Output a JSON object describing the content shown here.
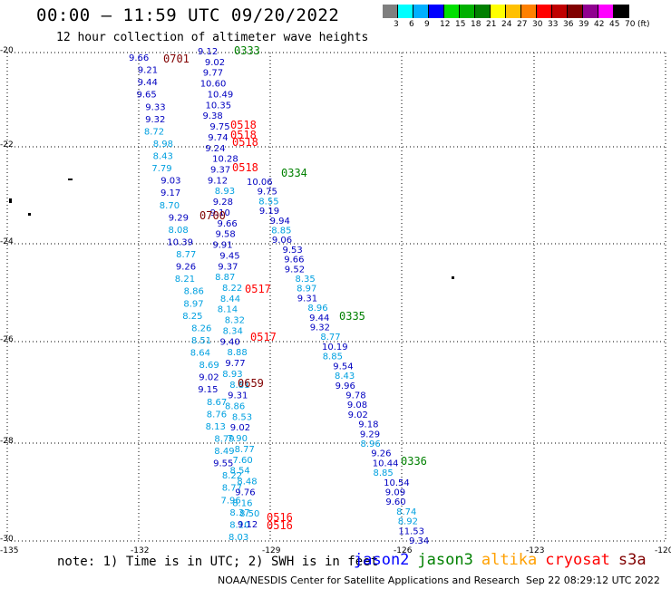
{
  "header": {
    "title": "00:00 – 11:59 UTC 09/20/2022",
    "subtitle": "12 hour collection of altimeter wave heights"
  },
  "colorbar": {
    "colors": [
      "#7f7f7f",
      "#00ffff",
      "#00b0ff",
      "#0000ff",
      "#00e000",
      "#00b000",
      "#008000",
      "#ffff00",
      "#ffc000",
      "#ff8000",
      "#ff0000",
      "#c00000",
      "#800000",
      "#900090",
      "#ff00ff",
      "#000000"
    ],
    "labels": [
      "3",
      "6",
      "9",
      "12",
      "15",
      "18",
      "21",
      "24",
      "27",
      "30",
      "33",
      "36",
      "39",
      "42",
      "45",
      "70",
      "(ft)"
    ]
  },
  "map": {
    "lat_labels": [
      "-20",
      "-22",
      "-24",
      "-26",
      "-28",
      "-30"
    ],
    "lon_labels": [
      "-135",
      "-132",
      "-129",
      "-126",
      "-123",
      "-120"
    ]
  },
  "tracks": [
    {
      "id": "track-a",
      "points": [
        {
          "v": "9.66",
          "c": "#0000c0"
        },
        {
          "v": "9.21",
          "c": "#0000c0"
        },
        {
          "v": "9.44",
          "c": "#0000c0"
        },
        {
          "v": "9.65",
          "c": "#0000c0"
        },
        {
          "v": "9.33",
          "c": "#0000c0"
        },
        {
          "v": "9.32",
          "c": "#0000c0"
        },
        {
          "v": "8.72",
          "c": "#00a0e0"
        },
        {
          "v": "8.98",
          "c": "#00a0e0"
        },
        {
          "v": "8.43",
          "c": "#00a0e0"
        },
        {
          "v": "7.79",
          "c": "#00a0e0"
        },
        {
          "v": "9.03",
          "c": "#0000c0"
        },
        {
          "v": "9.17",
          "c": "#0000c0"
        },
        {
          "v": "8.70",
          "c": "#00a0e0"
        },
        {
          "v": "9.29",
          "c": "#0000c0"
        },
        {
          "v": "8.08",
          "c": "#00a0e0"
        },
        {
          "v": "10.39",
          "c": "#0000c0"
        },
        {
          "v": "8.77",
          "c": "#00a0e0"
        },
        {
          "v": "9.26",
          "c": "#0000c0"
        },
        {
          "v": "8.21",
          "c": "#00a0e0"
        },
        {
          "v": "8.86",
          "c": "#00a0e0"
        },
        {
          "v": "8.97",
          "c": "#00a0e0"
        },
        {
          "v": "8.25",
          "c": "#00a0e0"
        },
        {
          "v": "8.26",
          "c": "#00a0e0"
        },
        {
          "v": "8.51",
          "c": "#00a0e0"
        },
        {
          "v": "8.64",
          "c": "#00a0e0"
        },
        {
          "v": "8.69",
          "c": "#00a0e0"
        },
        {
          "v": "9.02",
          "c": "#0000c0"
        },
        {
          "v": "9.15",
          "c": "#0000c0"
        },
        {
          "v": "8.67",
          "c": "#00a0e0"
        },
        {
          "v": "8.76",
          "c": "#00a0e0"
        },
        {
          "v": "8.13",
          "c": "#00a0e0"
        },
        {
          "v": "8.79",
          "c": "#00a0e0"
        },
        {
          "v": "8.49",
          "c": "#00a0e0"
        },
        {
          "v": "9.55",
          "c": "#0000c0"
        },
        {
          "v": "8.22",
          "c": "#00a0e0"
        },
        {
          "v": "8.77",
          "c": "#00a0e0"
        },
        {
          "v": "7.96",
          "c": "#00a0e0"
        },
        {
          "v": "8.37",
          "c": "#00a0e0"
        },
        {
          "v": "8.10",
          "c": "#00a0e0"
        },
        {
          "v": "8.03",
          "c": "#00a0e0"
        }
      ]
    },
    {
      "id": "track-b",
      "points": [
        {
          "v": "9.12",
          "c": "#0000c0"
        },
        {
          "v": "9.02",
          "c": "#0000c0"
        },
        {
          "v": "9.77",
          "c": "#0000c0"
        },
        {
          "v": "10.60",
          "c": "#0000c0"
        },
        {
          "v": "10.49",
          "c": "#0000c0"
        },
        {
          "v": "10.35",
          "c": "#0000c0"
        },
        {
          "v": "9.38",
          "c": "#0000c0"
        },
        {
          "v": "9.75",
          "c": "#0000c0"
        },
        {
          "v": "9.74",
          "c": "#0000c0"
        },
        {
          "v": "9.24",
          "c": "#0000c0"
        },
        {
          "v": "10.28",
          "c": "#0000c0"
        },
        {
          "v": "9.37",
          "c": "#0000c0"
        },
        {
          "v": "9.12",
          "c": "#0000c0"
        },
        {
          "v": "8.93",
          "c": "#00a0e0"
        },
        {
          "v": "9.28",
          "c": "#0000c0"
        },
        {
          "v": "9.10",
          "c": "#0000c0"
        },
        {
          "v": "9.66",
          "c": "#0000c0"
        },
        {
          "v": "9.58",
          "c": "#0000c0"
        },
        {
          "v": "9.91",
          "c": "#0000c0"
        },
        {
          "v": "9.45",
          "c": "#0000c0"
        },
        {
          "v": "9.37",
          "c": "#0000c0"
        },
        {
          "v": "8.87",
          "c": "#00a0e0"
        },
        {
          "v": "8.22",
          "c": "#00a0e0"
        },
        {
          "v": "8.44",
          "c": "#00a0e0"
        },
        {
          "v": "8.14",
          "c": "#00a0e0"
        },
        {
          "v": "8.32",
          "c": "#00a0e0"
        },
        {
          "v": "8.34",
          "c": "#00a0e0"
        },
        {
          "v": "9.40",
          "c": "#0000c0"
        },
        {
          "v": "8.88",
          "c": "#00a0e0"
        },
        {
          "v": "9.77",
          "c": "#0000c0"
        },
        {
          "v": "8.93",
          "c": "#00a0e0"
        },
        {
          "v": "8.81",
          "c": "#00a0e0"
        },
        {
          "v": "9.31",
          "c": "#0000c0"
        },
        {
          "v": "8.86",
          "c": "#00a0e0"
        },
        {
          "v": "8.53",
          "c": "#00a0e0"
        },
        {
          "v": "9.02",
          "c": "#0000c0"
        },
        {
          "v": "7.90",
          "c": "#00a0e0"
        },
        {
          "v": "8.77",
          "c": "#00a0e0"
        },
        {
          "v": "7.60",
          "c": "#00a0e0"
        },
        {
          "v": "8.54",
          "c": "#00a0e0"
        },
        {
          "v": "8.48",
          "c": "#00a0e0"
        },
        {
          "v": "9.76",
          "c": "#0000c0"
        },
        {
          "v": "8.16",
          "c": "#00a0e0"
        },
        {
          "v": "8.50",
          "c": "#00a0e0"
        },
        {
          "v": "9.12",
          "c": "#0000c0"
        }
      ]
    },
    {
      "id": "track-c",
      "points": [
        {
          "v": "10.06",
          "c": "#0000c0"
        },
        {
          "v": "9.75",
          "c": "#0000c0"
        },
        {
          "v": "8.55",
          "c": "#00a0e0"
        },
        {
          "v": "9.19",
          "c": "#0000c0"
        },
        {
          "v": "9.94",
          "c": "#0000c0"
        },
        {
          "v": "8.85",
          "c": "#00a0e0"
        },
        {
          "v": "9.06",
          "c": "#0000c0"
        },
        {
          "v": "9.53",
          "c": "#0000c0"
        },
        {
          "v": "9.66",
          "c": "#0000c0"
        },
        {
          "v": "9.52",
          "c": "#0000c0"
        },
        {
          "v": "8.35",
          "c": "#00a0e0"
        },
        {
          "v": "8.97",
          "c": "#00a0e0"
        },
        {
          "v": "9.31",
          "c": "#0000c0"
        },
        {
          "v": "8.96",
          "c": "#00a0e0"
        },
        {
          "v": "9.44",
          "c": "#0000c0"
        },
        {
          "v": "9.32",
          "c": "#0000c0"
        },
        {
          "v": "8.77",
          "c": "#00a0e0"
        },
        {
          "v": "10.19",
          "c": "#0000c0"
        },
        {
          "v": "8.85",
          "c": "#00a0e0"
        },
        {
          "v": "9.54",
          "c": "#0000c0"
        },
        {
          "v": "8.43",
          "c": "#00a0e0"
        },
        {
          "v": "9.96",
          "c": "#0000c0"
        },
        {
          "v": "9.78",
          "c": "#0000c0"
        },
        {
          "v": "9.08",
          "c": "#0000c0"
        },
        {
          "v": "9.02",
          "c": "#0000c0"
        },
        {
          "v": "9.18",
          "c": "#0000c0"
        },
        {
          "v": "9.29",
          "c": "#0000c0"
        },
        {
          "v": "8.96",
          "c": "#00a0e0"
        },
        {
          "v": "9.26",
          "c": "#0000c0"
        },
        {
          "v": "10.44",
          "c": "#0000c0"
        },
        {
          "v": "8.85",
          "c": "#00a0e0"
        },
        {
          "v": "10.54",
          "c": "#0000c0"
        },
        {
          "v": "9.09",
          "c": "#0000c0"
        },
        {
          "v": "9.60",
          "c": "#0000c0"
        },
        {
          "v": "8.74",
          "c": "#00a0e0"
        },
        {
          "v": "8.92",
          "c": "#00a0e0"
        },
        {
          "v": "11.53",
          "c": "#0000c0"
        },
        {
          "v": "9.34",
          "c": "#0000c0"
        }
      ]
    }
  ],
  "time_labels": [
    {
      "t": "0701",
      "c": "#800000"
    },
    {
      "t": "0333",
      "c": "#008000"
    },
    {
      "t": "0518",
      "c": "#ff0000"
    },
    {
      "t": "0518",
      "c": "#ff0000"
    },
    {
      "t": "0518",
      "c": "#ff0000"
    },
    {
      "t": "0518",
      "c": "#ff0000"
    },
    {
      "t": "0334",
      "c": "#008000"
    },
    {
      "t": "0700",
      "c": "#800000"
    },
    {
      "t": "0517",
      "c": "#ff0000"
    },
    {
      "t": "0335",
      "c": "#008000"
    },
    {
      "t": "0517",
      "c": "#ff0000"
    },
    {
      "t": "0659",
      "c": "#800000"
    },
    {
      "t": "0336",
      "c": "#008000"
    },
    {
      "t": "0516",
      "c": "#ff0000"
    },
    {
      "t": "0516",
      "c": "#ff0000"
    }
  ],
  "footer": {
    "note": "note: 1) Time is in UTC; 2) SWH is in feet",
    "satellites": [
      {
        "name": "jason2",
        "color": "#0000ff"
      },
      {
        "name": "jason3",
        "color": "#008000"
      },
      {
        "name": "altika",
        "color": "#ffa000"
      },
      {
        "name": "cryosat",
        "color": "#ff0000"
      },
      {
        "name": "s3a",
        "color": "#800000"
      }
    ],
    "credit": "NOAA/NESDIS Center for Satellite Applications and Research",
    "timestamp": "Sep 22 08:29:12 UTC 2022"
  }
}
